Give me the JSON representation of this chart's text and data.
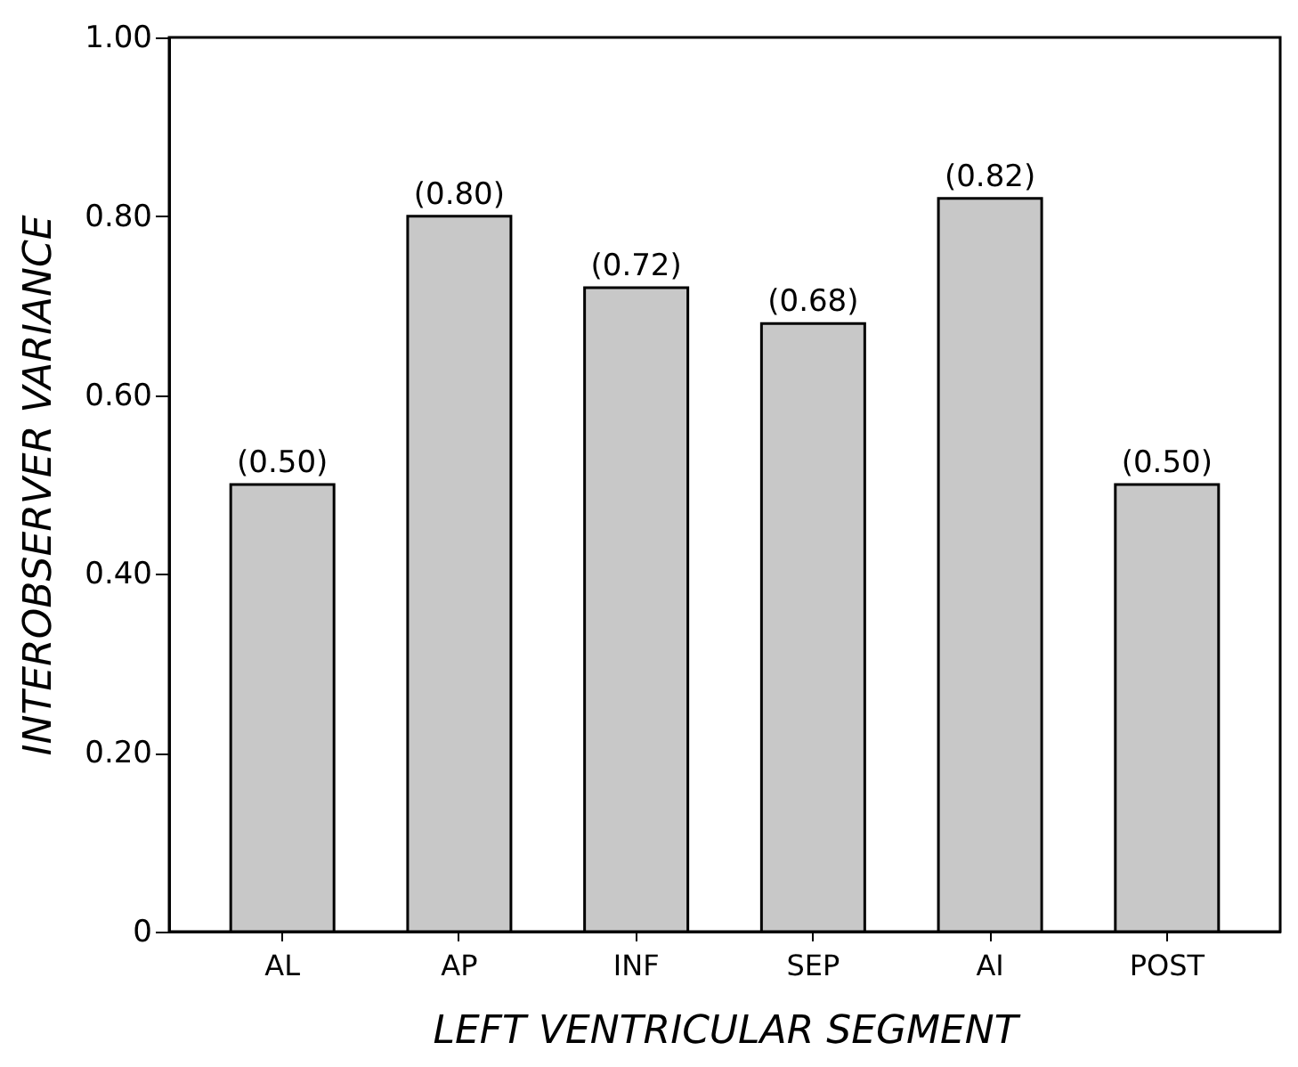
{
  "chart_data": {
    "type": "bar",
    "xlabel": "LEFT VENTRICULAR SEGMENT",
    "ylabel": "INTEROBSERVER VARIANCE",
    "categories": [
      "AL",
      "AP",
      "INF",
      "SEP",
      "AI",
      "POST"
    ],
    "values": [
      0.5,
      0.8,
      0.72,
      0.68,
      0.82,
      0.5
    ],
    "value_labels": [
      "(0.50)",
      "(0.80)",
      "(0.72)",
      "(0.68)",
      "(0.82)",
      "(0.50)"
    ],
    "color": "#c8c8c8",
    "ylim": [
      0,
      1.0
    ],
    "yticks": [
      0,
      {
        "value": 0.2,
        "label": "0.20"
      },
      {
        "value": 0.4,
        "label": "0.40"
      },
      {
        "value": 0.6,
        "label": "0.60"
      },
      {
        "value": 0.8,
        "label": "0.80"
      },
      {
        "value": 1.0,
        "label": "1.00"
      }
    ],
    "grid": false
  }
}
